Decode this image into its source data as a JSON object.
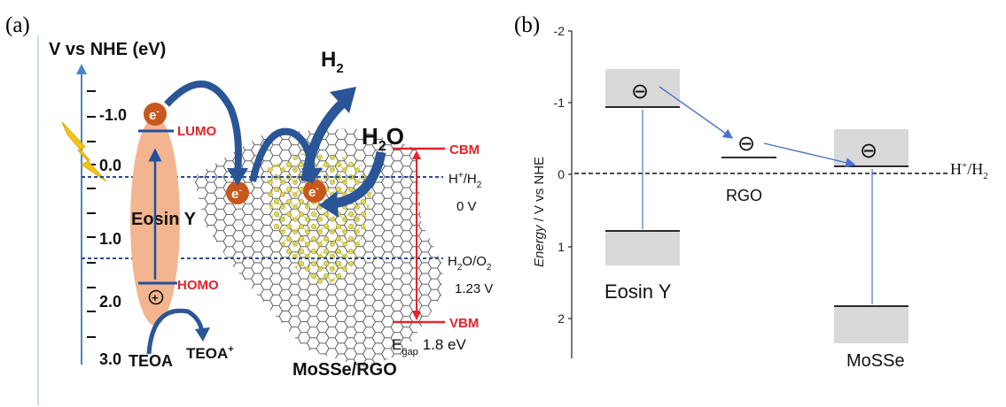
{
  "panel_a": {
    "tag": "(a)",
    "axis_title": "V vs NHE (eV)",
    "ticks": [
      "-1.0",
      "0.0",
      "1.0",
      "2.0",
      "3.0"
    ],
    "dye": "Eosin Y",
    "lumo": "LUMO",
    "homo": "HOMO",
    "electron": "e",
    "electron_sup": "-",
    "plus": "+",
    "teoa": "TEOA",
    "teoa_plus": "TEOA",
    "teoa_plus_sup": "+",
    "h2": "H",
    "h2_sub": "2",
    "h2o": "H",
    "h2o_sub": "2",
    "h2o_o": "O",
    "cbm": "CBM",
    "vbm": "VBM",
    "hplus_h2_a": "H",
    "hplus_h2_sup": "+",
    "hplus_h2_b": "/H",
    "hplus_h2_sub": "2",
    "zero_v": "0 V",
    "h2o_o2_a": "H",
    "h2o_o2_sub1": "2",
    "h2o_o2_b": "O/O",
    "h2o_o2_sub2": "2",
    "v123": "1.23 V",
    "egap_e": "E",
    "egap_sub": "gap",
    "egap_val": "1.8 eV",
    "material": "MoSSe/RGO",
    "colors": {
      "red": "#e8222a",
      "blue_arrow": "#2a5597",
      "dye_fill": "#f3b58f",
      "electron": "#c8571c",
      "dotted": "#2f4a8a"
    }
  },
  "panel_b": {
    "tag": "(b)",
    "ylabel_italic": "Energy",
    "ylabel_rest": " / V vs NHE",
    "ticks": [
      "-2",
      "-1",
      "0",
      "1",
      "2"
    ],
    "eosin": "Eosin Y",
    "rgo": "RGO",
    "mosse": "MoSSe",
    "ref_a": "H",
    "ref_sup": "+",
    "ref_b": "/H",
    "ref_sub": "2",
    "electron_symbol": "⊖",
    "colors": {
      "box": "#d9d9d9",
      "connector": "#4a74c9"
    }
  }
}
